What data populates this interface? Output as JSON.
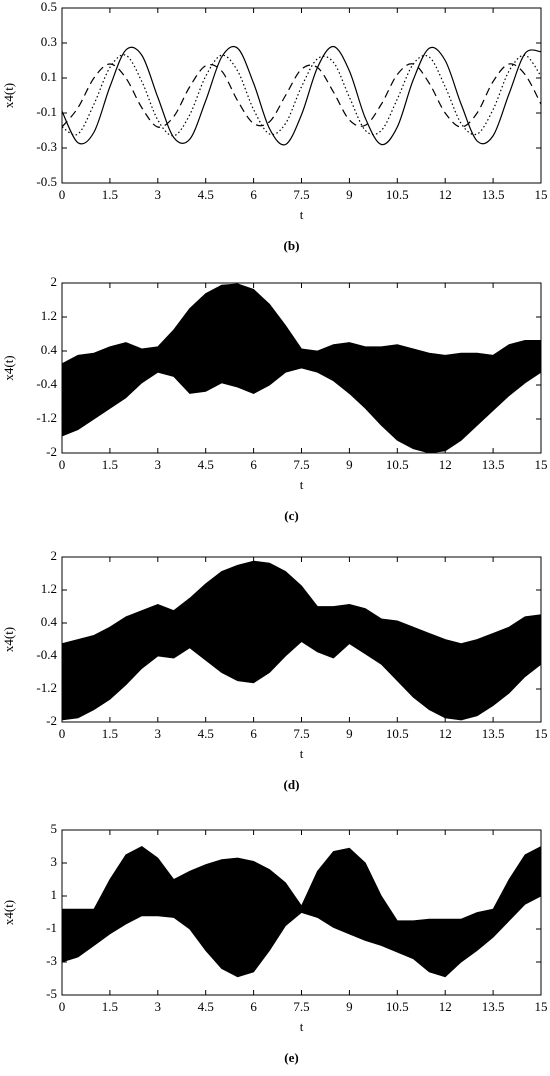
{
  "chart_data": [
    {
      "type": "line",
      "caption": "(b)",
      "xlabel": "t",
      "ylabel": "x4(t)",
      "xlim": [
        0,
        15
      ],
      "xticks": [
        0,
        1.5,
        3,
        4.5,
        6,
        7.5,
        9,
        10.5,
        12,
        13.5,
        15
      ],
      "ylim": [
        -0.5,
        0.5
      ],
      "yticks": [
        -0.5,
        -0.3,
        -0.1,
        0.1,
        0.3,
        0.5
      ],
      "x": [
        0,
        0.5,
        1,
        1.5,
        2,
        2.5,
        3,
        3.5,
        4,
        4.5,
        5,
        5.5,
        6,
        6.5,
        7,
        7.5,
        8,
        8.5,
        9,
        9.5,
        10,
        10.5,
        11,
        11.5,
        12,
        12.5,
        13,
        13.5,
        14,
        14.5,
        15
      ],
      "series": [
        {
          "color": "#000000",
          "line_style": "solid",
          "values": [
            -0.09,
            -0.27,
            -0.21,
            0.05,
            0.26,
            0.23,
            -0.01,
            -0.24,
            -0.25,
            -0.03,
            0.22,
            0.27,
            0.07,
            -0.19,
            -0.28,
            -0.11,
            0.16,
            0.28,
            0.14,
            -0.13,
            -0.28,
            -0.18,
            0.09,
            0.27,
            0.2,
            -0.05,
            -0.26,
            -0.23,
            0.01,
            0.24,
            0.25
          ]
        },
        {
          "color": "#000000",
          "line_style": "dotted",
          "values": [
            -0.18,
            -0.22,
            -0.05,
            0.16,
            0.23,
            0.08,
            -0.14,
            -0.23,
            -0.11,
            0.11,
            0.23,
            0.14,
            -0.08,
            -0.22,
            -0.16,
            0.05,
            0.21,
            0.19,
            -0.01,
            -0.2,
            -0.2,
            -0.02,
            0.18,
            0.22,
            0.05,
            -0.16,
            -0.22,
            -0.08,
            0.14,
            0.23,
            0.11
          ]
        },
        {
          "color": "#000000",
          "line_style": "dashed",
          "values": [
            -0.18,
            -0.07,
            0.1,
            0.18,
            0.1,
            -0.07,
            -0.18,
            -0.12,
            0.05,
            0.17,
            0.14,
            -0.03,
            -0.16,
            -0.15,
            0.0,
            0.15,
            0.16,
            0.02,
            -0.14,
            -0.17,
            -0.05,
            0.12,
            0.18,
            0.07,
            -0.1,
            -0.18,
            -0.1,
            0.08,
            0.18,
            0.12,
            -0.05
          ]
        }
      ]
    },
    {
      "type": "band",
      "caption": "(c)",
      "xlabel": "t",
      "ylabel": "x4(t)",
      "xlim": [
        0,
        15
      ],
      "xticks": [
        0,
        1.5,
        3,
        4.5,
        6,
        7.5,
        9,
        10.5,
        12,
        13.5,
        15
      ],
      "ylim": [
        -2,
        2
      ],
      "yticks": [
        -2,
        -1.2,
        -0.4,
        0.4,
        1.2,
        2
      ],
      "x": [
        0,
        0.5,
        1,
        1.5,
        2,
        2.5,
        3,
        3.5,
        4,
        4.5,
        5,
        5.5,
        6,
        6.5,
        7,
        7.5,
        8,
        8.5,
        9,
        9.5,
        10,
        10.5,
        11,
        11.5,
        12,
        12.5,
        13,
        13.5,
        14,
        14.5,
        15
      ],
      "series": [
        {
          "color": "#000000",
          "values": [
            0.1,
            0.3,
            0.35,
            0.5,
            0.6,
            0.45,
            0.5,
            0.9,
            1.4,
            1.75,
            1.95,
            1.98,
            1.85,
            1.5,
            1.0,
            0.45,
            0.4,
            0.55,
            0.6,
            0.5,
            0.5,
            0.55,
            0.45,
            0.35,
            0.3,
            0.35,
            0.35,
            0.3,
            0.55,
            0.65,
            0.65
          ]
        },
        {
          "color": "#000000",
          "values": [
            -1.6,
            -1.45,
            -1.2,
            -0.95,
            -0.7,
            -0.35,
            -0.1,
            -0.2,
            -0.6,
            -0.55,
            -0.35,
            -0.45,
            -0.6,
            -0.4,
            -0.1,
            0.0,
            -0.1,
            -0.3,
            -0.6,
            -0.95,
            -1.35,
            -1.7,
            -1.9,
            -2.0,
            -1.95,
            -1.7,
            -1.35,
            -1.0,
            -0.65,
            -0.35,
            -0.1
          ]
        }
      ]
    },
    {
      "type": "band",
      "caption": "(d)",
      "xlabel": "t",
      "ylabel": "x4(t)",
      "xlim": [
        0,
        15
      ],
      "xticks": [
        0,
        1.5,
        3,
        4.5,
        6,
        7.5,
        9,
        10.5,
        12,
        13.5,
        15
      ],
      "ylim": [
        -2,
        2
      ],
      "yticks": [
        -2,
        -1.2,
        -0.4,
        0.4,
        1.2,
        2
      ],
      "x": [
        0,
        0.5,
        1,
        1.5,
        2,
        2.5,
        3,
        3.5,
        4,
        4.5,
        5,
        5.5,
        6,
        6.5,
        7,
        7.5,
        8,
        8.5,
        9,
        9.5,
        10,
        10.5,
        11,
        11.5,
        12,
        12.5,
        13,
        13.5,
        14,
        14.5,
        15
      ],
      "series": [
        {
          "color": "#000000",
          "values": [
            -0.1,
            0.0,
            0.1,
            0.3,
            0.55,
            0.7,
            0.85,
            0.7,
            1.0,
            1.35,
            1.65,
            1.8,
            1.9,
            1.85,
            1.65,
            1.3,
            0.8,
            0.8,
            0.85,
            0.75,
            0.5,
            0.45,
            0.3,
            0.15,
            0.0,
            -0.1,
            0.0,
            0.15,
            0.3,
            0.55,
            0.6
          ]
        },
        {
          "color": "#000000",
          "values": [
            -1.95,
            -1.9,
            -1.7,
            -1.45,
            -1.1,
            -0.7,
            -0.4,
            -0.45,
            -0.2,
            -0.5,
            -0.8,
            -1.0,
            -1.05,
            -0.8,
            -0.4,
            -0.05,
            -0.3,
            -0.45,
            -0.1,
            -0.35,
            -0.6,
            -1.0,
            -1.4,
            -1.7,
            -1.9,
            -1.95,
            -1.85,
            -1.6,
            -1.3,
            -0.9,
            -0.6
          ]
        }
      ]
    },
    {
      "type": "band",
      "caption": "(e)",
      "xlabel": "t",
      "ylabel": "x4(t)",
      "xlim": [
        0,
        15
      ],
      "xticks": [
        0,
        1.5,
        3,
        4.5,
        6,
        7.5,
        9,
        10.5,
        12,
        13.5,
        15
      ],
      "ylim": [
        -5,
        5
      ],
      "yticks": [
        -5,
        -3,
        -1,
        1,
        3,
        5
      ],
      "x": [
        0,
        0.5,
        1,
        1.5,
        2,
        2.5,
        3,
        3.5,
        4,
        4.5,
        5,
        5.5,
        6,
        6.5,
        7,
        7.5,
        8,
        8.5,
        9,
        9.5,
        10,
        10.5,
        11,
        11.5,
        12,
        12.5,
        13,
        13.5,
        14,
        14.5,
        15
      ],
      "series": [
        {
          "color": "#000000",
          "values": [
            0.2,
            0.2,
            0.2,
            2.0,
            3.5,
            4.0,
            3.3,
            2.0,
            2.5,
            2.9,
            3.2,
            3.3,
            3.1,
            2.6,
            1.8,
            0.4,
            2.5,
            3.7,
            3.9,
            3.0,
            1.0,
            -0.5,
            -0.5,
            -0.4,
            -0.4,
            -0.4,
            0.0,
            0.2,
            2.0,
            3.5,
            4.0
          ]
        },
        {
          "color": "#000000",
          "values": [
            -3.0,
            -2.7,
            -2.0,
            -1.3,
            -0.7,
            -0.2,
            -0.2,
            -0.3,
            -1.0,
            -2.3,
            -3.4,
            -3.9,
            -3.6,
            -2.3,
            -0.8,
            0.0,
            -0.3,
            -0.9,
            -1.3,
            -1.7,
            -2.0,
            -2.4,
            -2.8,
            -3.6,
            -3.9,
            -3.0,
            -2.3,
            -1.5,
            -0.5,
            0.5,
            1.0
          ]
        }
      ]
    }
  ]
}
